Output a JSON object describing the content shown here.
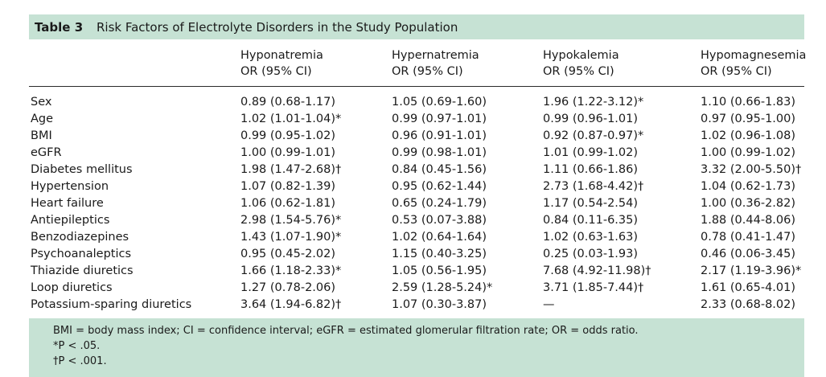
{
  "table": {
    "label": "Table 3",
    "caption": "Risk Factors of Electrolyte Disorders in the Study Population",
    "columns": [
      {
        "name": "Hyponatremia",
        "sub": "OR (95% CI)"
      },
      {
        "name": "Hypernatremia",
        "sub": "OR (95% CI)"
      },
      {
        "name": "Hypokalemia",
        "sub": "OR (95% CI)"
      },
      {
        "name": "Hypomagnesemia",
        "sub": "OR (95% CI)"
      }
    ],
    "rows": [
      {
        "factor": "Sex",
        "values": [
          "0.89 (0.68-1.17)",
          "1.05 (0.69-1.60)",
          "1.96 (1.22-3.12)*",
          "1.10 (0.66-1.83)"
        ]
      },
      {
        "factor": "Age",
        "values": [
          "1.02 (1.01-1.04)*",
          "0.99 (0.97-1.01)",
          "0.99 (0.96-1.01)",
          "0.97 (0.95-1.00)"
        ]
      },
      {
        "factor": "BMI",
        "values": [
          "0.99 (0.95-1.02)",
          "0.96 (0.91-1.01)",
          "0.92 (0.87-0.97)*",
          "1.02 (0.96-1.08)"
        ]
      },
      {
        "factor": "eGFR",
        "values": [
          "1.00 (0.99-1.01)",
          "0.99 (0.98-1.01)",
          "1.01 (0.99-1.02)",
          "1.00 (0.99-1.02)"
        ]
      },
      {
        "factor": "Diabetes mellitus",
        "values": [
          "1.98 (1.47-2.68)†",
          "0.84 (0.45-1.56)",
          "1.11 (0.66-1.86)",
          "3.32 (2.00-5.50)†"
        ]
      },
      {
        "factor": "Hypertension",
        "values": [
          "1.07 (0.82-1.39)",
          "0.95 (0.62-1.44)",
          "2.73 (1.68-4.42)†",
          "1.04 (0.62-1.73)"
        ]
      },
      {
        "factor": "Heart failure",
        "values": [
          "1.06 (0.62-1.81)",
          "0.65 (0.24-1.79)",
          "1.17 (0.54-2.54)",
          "1.00 (0.36-2.82)"
        ]
      },
      {
        "factor": "Antiepileptics",
        "values": [
          "2.98 (1.54-5.76)*",
          "0.53 (0.07-3.88)",
          "0.84 (0.11-6.35)",
          "1.88 (0.44-8.06)"
        ]
      },
      {
        "factor": "Benzodiazepines",
        "values": [
          "1.43 (1.07-1.90)*",
          "1.02 (0.64-1.64)",
          "1.02 (0.63-1.63)",
          "0.78 (0.41-1.47)"
        ]
      },
      {
        "factor": "Psychoanaleptics",
        "values": [
          "0.95 (0.45-2.02)",
          "1.15 (0.40-3.25)",
          "0.25 (0.03-1.93)",
          "0.46 (0.06-3.45)"
        ]
      },
      {
        "factor": "Thiazide diuretics",
        "values": [
          "1.66 (1.18-2.33)*",
          "1.05 (0.56-1.95)",
          "7.68 (4.92-11.98)†",
          "2.17 (1.19-3.96)*"
        ]
      },
      {
        "factor": "Loop diuretics",
        "values": [
          "1.27 (0.78-2.06)",
          "2.59 (1.28-5.24)*",
          "3.71 (1.85-7.44)†",
          "1.61 (0.65-4.01)"
        ]
      },
      {
        "factor": "Potassium-sparing diuretics",
        "values": [
          "3.64 (1.94-6.82)†",
          "1.07 (0.30-3.87)",
          "—",
          "2.33 (0.68-8.02)"
        ]
      }
    ],
    "footnotes": [
      "BMI = body mass index; CI = confidence interval; eGFR = estimated glomerular filtration rate; OR = odds ratio.",
      "*P < .05.",
      "†P < .001."
    ]
  }
}
